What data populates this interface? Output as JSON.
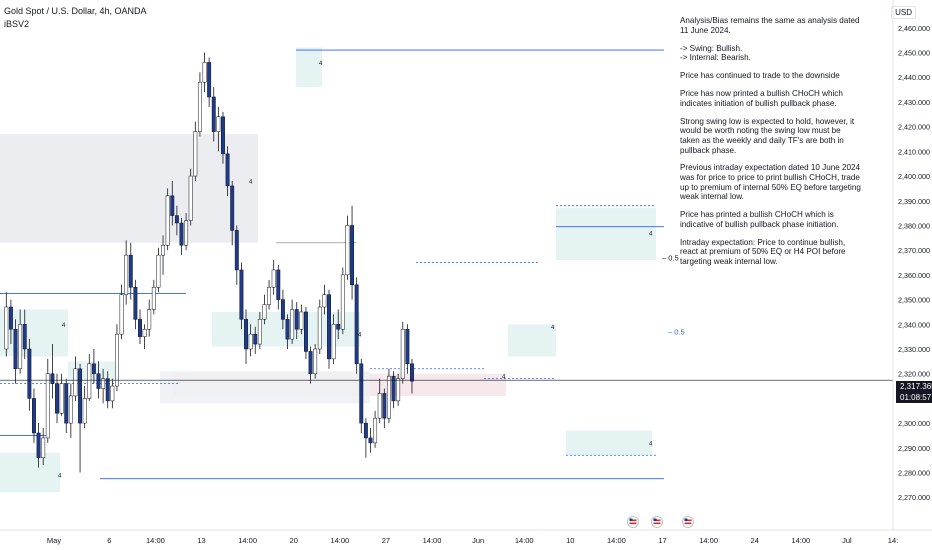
{
  "header": {
    "symbol": "Gold Spot / U.S. Dollar, 4h, OANDA",
    "indicator": "iBSV2"
  },
  "currency_label": "USD",
  "analysis_text": [
    "Analysis/Bias remains the same as analysis dated 11 June 2024.",
    "-> Swing:  Bullish.\n-> Internal:  Bearish.",
    "Price has continued to trade to the downside",
    "Price has now printed a bullish CHoCH which indicates initiation of bullish pullback phase.",
    "Strong swing low is expected to hold, however, it would be worth noting the swing low must be taken as the weekly and daily TF's are both in pullback phase.",
    "Previous intraday expectation dated 10 June 2024 was for price to price to print bullish CHoCH, trade up to premium of internal 50% EQ before targeting weak internal low.",
    "Price has printed a bullish CHoCH which is indicative of bullish pullback phase initiation.",
    "Intraday expectation: Price to continue bullish, react at premium of 50% EQ or H4 POI before targeting weak internal low."
  ],
  "last_price": {
    "price": "2,317.365",
    "countdown": "01:08:57"
  },
  "colors": {
    "up_candle": "#ffffff",
    "down_candle": "#1e3a8a",
    "wick": "#131722",
    "structure_line": "#2962ff",
    "teal_zone": "#e0f2f1",
    "grey_zone": "#e9eaee",
    "pink_zone": "#f4e4e8"
  },
  "chart_data": {
    "type": "candlestick",
    "title": "Gold Spot / U.S. Dollar, 4h, OANDA",
    "ylim": [
      2262,
      2466
    ],
    "y_ticks": [
      "2,270.000",
      "2,280.000",
      "2,290.000",
      "2,300.000",
      "2,310.000",
      "2,320.000",
      "2,330.000",
      "2,340.000",
      "2,350.000",
      "2,360.000",
      "2,370.000",
      "2,380.000",
      "2,390.000",
      "2,400.000",
      "2,410.000",
      "2,420.000",
      "2,430.000",
      "2,440.000",
      "2,450.000",
      "2,460.000"
    ],
    "y_tick_values": [
      2270,
      2280,
      2290,
      2300,
      2310,
      2320,
      2330,
      2340,
      2350,
      2360,
      2370,
      2380,
      2390,
      2400,
      2410,
      2420,
      2430,
      2440,
      2450,
      2460
    ],
    "x_ticks": [
      "May",
      "6",
      "14:00",
      "13",
      "14:00",
      "20",
      "14:00",
      "27",
      "14:00",
      "Jun",
      "14:00",
      "10",
      "14:00",
      "17",
      "14:00",
      "24",
      "14:00",
      "Jul",
      "14:"
    ],
    "x_tick_bars": [
      0,
      12,
      22,
      32,
      42,
      52,
      62,
      72,
      82,
      92,
      102,
      112,
      122,
      132,
      142,
      152,
      162,
      172,
      182
    ],
    "last_price": 2317.365,
    "ohlc": [
      [
        2330,
        2353,
        2327,
        2347
      ],
      [
        2347,
        2350,
        2332,
        2338
      ],
      [
        2338,
        2342,
        2316,
        2322
      ],
      [
        2322,
        2346,
        2320,
        2340
      ],
      [
        2340,
        2346,
        2326,
        2330
      ],
      [
        2330,
        2334,
        2305,
        2310
      ],
      [
        2310,
        2314,
        2292,
        2296
      ],
      [
        2296,
        2300,
        2282,
        2286
      ],
      [
        2286,
        2298,
        2283,
        2294
      ],
      [
        2294,
        2326,
        2292,
        2320
      ],
      [
        2320,
        2332,
        2310,
        2316
      ],
      [
        2316,
        2320,
        2300,
        2304
      ],
      [
        2304,
        2320,
        2303,
        2316
      ],
      [
        2316,
        2318,
        2296,
        2300
      ],
      [
        2300,
        2316,
        2294,
        2311
      ],
      [
        2311,
        2327,
        2309,
        2322
      ],
      [
        2322,
        2324,
        2280,
        2300
      ],
      [
        2300,
        2315,
        2298,
        2310
      ],
      [
        2310,
        2328,
        2309,
        2324
      ],
      [
        2324,
        2330,
        2316,
        2320
      ],
      [
        2320,
        2325,
        2310,
        2314
      ],
      [
        2314,
        2322,
        2308,
        2318
      ],
      [
        2318,
        2321,
        2306,
        2309
      ],
      [
        2309,
        2318,
        2306,
        2315
      ],
      [
        2315,
        2340,
        2313,
        2336
      ],
      [
        2336,
        2356,
        2334,
        2352
      ],
      [
        2352,
        2374,
        2348,
        2368
      ],
      [
        2368,
        2373,
        2350,
        2355
      ],
      [
        2355,
        2358,
        2338,
        2342
      ],
      [
        2342,
        2346,
        2332,
        2335
      ],
      [
        2335,
        2340,
        2330,
        2338
      ],
      [
        2338,
        2350,
        2335,
        2346
      ],
      [
        2346,
        2358,
        2344,
        2355
      ],
      [
        2355,
        2371,
        2353,
        2368
      ],
      [
        2368,
        2376,
        2360,
        2372
      ],
      [
        2372,
        2395,
        2370,
        2392
      ],
      [
        2392,
        2398,
        2380,
        2384
      ],
      [
        2384,
        2388,
        2376,
        2381
      ],
      [
        2381,
        2383,
        2368,
        2372
      ],
      [
        2372,
        2385,
        2370,
        2382
      ],
      [
        2382,
        2403,
        2380,
        2400
      ],
      [
        2400,
        2422,
        2398,
        2418
      ],
      [
        2418,
        2442,
        2416,
        2438
      ],
      [
        2438,
        2450,
        2434,
        2446
      ],
      [
        2446,
        2448,
        2428,
        2432
      ],
      [
        2432,
        2436,
        2414,
        2418
      ],
      [
        2418,
        2428,
        2410,
        2424
      ],
      [
        2424,
        2426,
        2405,
        2409
      ],
      [
        2409,
        2412,
        2392,
        2396
      ],
      [
        2396,
        2398,
        2372,
        2378
      ],
      [
        2378,
        2380,
        2356,
        2362
      ],
      [
        2362,
        2365,
        2338,
        2342
      ],
      [
        2342,
        2346,
        2324,
        2330
      ],
      [
        2330,
        2340,
        2327,
        2336
      ],
      [
        2336,
        2339,
        2328,
        2332
      ],
      [
        2332,
        2345,
        2330,
        2342
      ],
      [
        2342,
        2352,
        2340,
        2348
      ],
      [
        2348,
        2358,
        2346,
        2355
      ],
      [
        2355,
        2366,
        2352,
        2362
      ],
      [
        2362,
        2364,
        2346,
        2350
      ],
      [
        2350,
        2354,
        2338,
        2342
      ],
      [
        2342,
        2344,
        2330,
        2334
      ],
      [
        2334,
        2350,
        2332,
        2346
      ],
      [
        2346,
        2349,
        2334,
        2338
      ],
      [
        2338,
        2348,
        2336,
        2345
      ],
      [
        2345,
        2347,
        2326,
        2329
      ],
      [
        2329,
        2331,
        2316,
        2320
      ],
      [
        2320,
        2332,
        2318,
        2330
      ],
      [
        2330,
        2350,
        2328,
        2347
      ],
      [
        2347,
        2356,
        2344,
        2352
      ],
      [
        2352,
        2354,
        2322,
        2326
      ],
      [
        2326,
        2344,
        2324,
        2340
      ],
      [
        2340,
        2346,
        2334,
        2338
      ],
      [
        2338,
        2363,
        2336,
        2360
      ],
      [
        2360,
        2384,
        2358,
        2380
      ],
      [
        2380,
        2388,
        2350,
        2356
      ],
      [
        2356,
        2359,
        2320,
        2324
      ],
      [
        2324,
        2326,
        2296,
        2300
      ],
      [
        2300,
        2302,
        2286,
        2294
      ],
      [
        2294,
        2298,
        2288,
        2292
      ],
      [
        2292,
        2305,
        2290,
        2302
      ],
      [
        2302,
        2318,
        2300,
        2312
      ],
      [
        2312,
        2314,
        2298,
        2302
      ],
      [
        2302,
        2322,
        2300,
        2319
      ],
      [
        2319,
        2321,
        2306,
        2309
      ],
      [
        2309,
        2320,
        2307,
        2318
      ],
      [
        2318,
        2341,
        2316,
        2338
      ],
      [
        2338,
        2340,
        2320,
        2324
      ],
      [
        2324,
        2326,
        2312,
        2317
      ]
    ],
    "levels": [
      {
        "label": "0.5",
        "price": 2367
      },
      {
        "label": "0.5",
        "price": 2337
      }
    ]
  }
}
